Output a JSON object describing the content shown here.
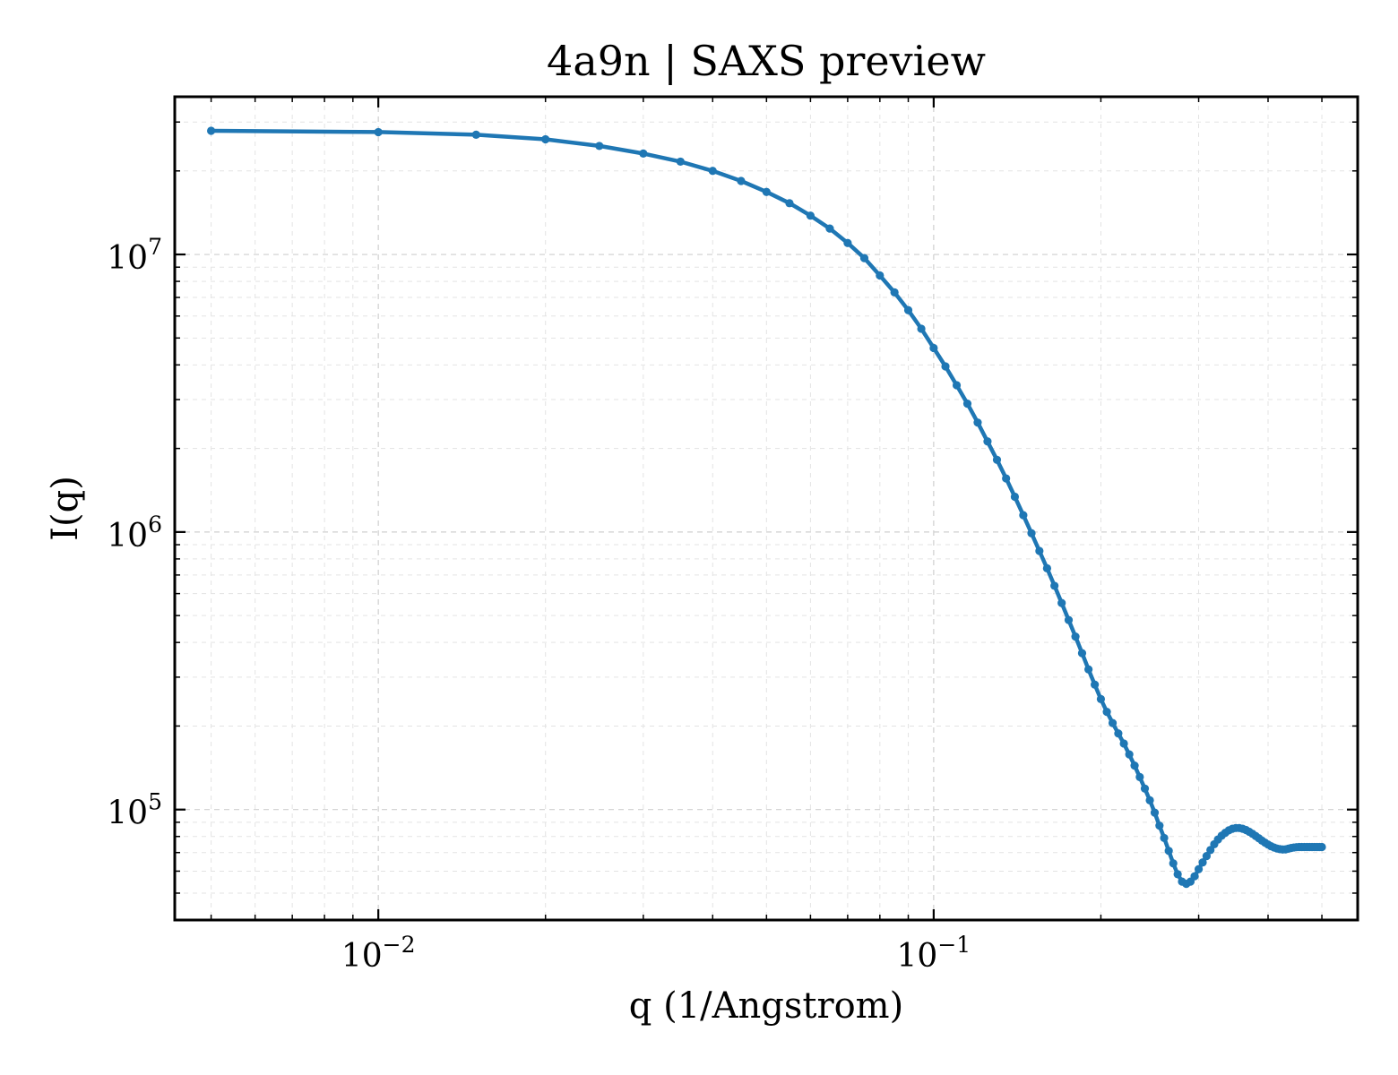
{
  "chart_data": {
    "type": "line",
    "title": "4a9n | SAXS preview",
    "xlabel": "q (1/Angstrom)",
    "ylabel": "I(q)",
    "xscale": "log",
    "yscale": "log",
    "xlim": [
      0.0043,
      0.58
    ],
    "ylim": [
      40000,
      37000000
    ],
    "grid": true,
    "legend": "none",
    "x_tick_labels": [
      {
        "base": "10",
        "exp": "−2",
        "value": 0.01
      },
      {
        "base": "10",
        "exp": "−1",
        "value": 0.1
      }
    ],
    "y_tick_labels": [
      {
        "base": "10",
        "exp": "5",
        "value": 100000
      },
      {
        "base": "10",
        "exp": "6",
        "value": 1000000
      },
      {
        "base": "10",
        "exp": "7",
        "value": 10000000
      }
    ],
    "series": [
      {
        "color": "#1f77b4",
        "x": [
          0.005,
          0.01,
          0.015,
          0.02,
          0.025,
          0.03,
          0.035,
          0.04,
          0.045,
          0.05,
          0.055,
          0.06,
          0.065,
          0.07,
          0.075,
          0.08,
          0.085,
          0.09,
          0.095,
          0.1,
          0.105,
          0.11,
          0.115,
          0.12,
          0.125,
          0.13,
          0.135,
          0.14,
          0.145,
          0.15,
          0.155,
          0.16,
          0.165,
          0.17,
          0.175,
          0.18,
          0.185,
          0.19,
          0.195,
          0.2,
          0.205,
          0.21,
          0.215,
          0.22,
          0.225,
          0.23,
          0.235,
          0.24,
          0.245,
          0.25,
          0.255,
          0.26,
          0.265,
          0.27,
          0.275,
          0.28,
          0.285,
          0.29,
          0.295,
          0.3,
          0.305,
          0.31,
          0.315,
          0.32,
          0.325,
          0.33,
          0.335,
          0.34,
          0.345,
          0.35,
          0.355,
          0.36,
          0.365,
          0.37,
          0.375,
          0.38,
          0.385,
          0.39,
          0.395,
          0.4,
          0.405,
          0.41,
          0.415,
          0.42,
          0.425,
          0.43,
          0.435,
          0.44,
          0.445,
          0.45,
          0.455,
          0.46,
          0.465,
          0.47,
          0.475,
          0.48,
          0.485,
          0.49,
          0.495,
          0.5
        ],
        "y": [
          27900000,
          27600000,
          27000000,
          26000000,
          24600000,
          23100000,
          21600000,
          20000000,
          18400000,
          16800000,
          15300000,
          13800000,
          12400000,
          11000000,
          9700000,
          8400000,
          7300000,
          6300000,
          5400000,
          4600000,
          3950000,
          3380000,
          2900000,
          2480000,
          2120000,
          1820000,
          1560000,
          1340000,
          1150000,
          990000,
          855000,
          740000,
          640000,
          555000,
          482000,
          420000,
          366000,
          320000,
          282000,
          250000,
          225000,
          205000,
          188000,
          173000,
          158000,
          144000,
          131000,
          119000,
          108000,
          97500,
          87500,
          79000,
          71000,
          64000,
          58500,
          55000,
          54000,
          55000,
          57500,
          61000,
          64500,
          68000,
          71500,
          75000,
          78000,
          80500,
          82500,
          84200,
          85300,
          85800,
          85800,
          85300,
          84400,
          83200,
          81800,
          80300,
          78800,
          77300,
          76000,
          74800,
          73800,
          73000,
          72400,
          72000,
          71800,
          71900,
          72300,
          72700,
          73000,
          73200,
          73300,
          73300,
          73300,
          73300,
          73300,
          73300,
          73300,
          73300,
          73300,
          73300
        ]
      }
    ]
  }
}
